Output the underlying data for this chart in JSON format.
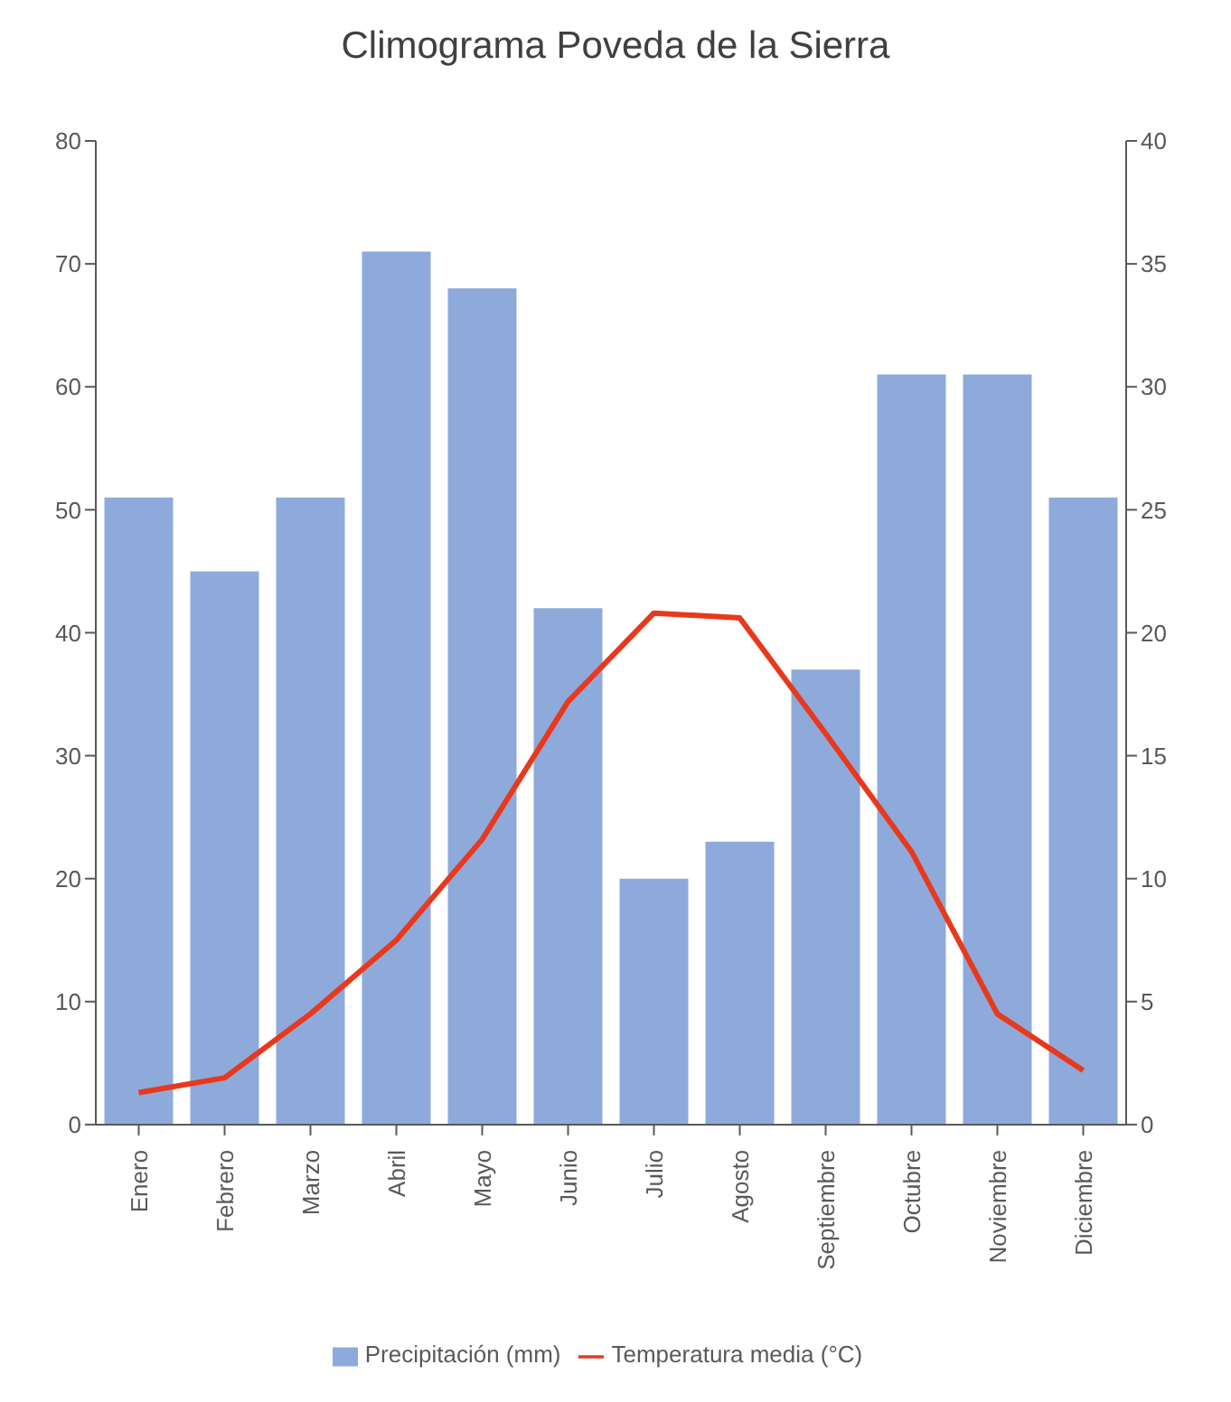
{
  "chart_data": {
    "type": "bar",
    "title": "Climograma Poveda de la Sierra",
    "categories": [
      "Enero",
      "Febrero",
      "Marzo",
      "Abril",
      "Mayo",
      "Junio",
      "Julio",
      "Agosto",
      "Septiembre",
      "Octubre",
      "Noviembre",
      "Diciembre"
    ],
    "series": [
      {
        "name": "Precipitación (mm)",
        "color": "#8eaadb",
        "values": [
          51,
          45,
          51,
          71,
          68,
          42,
          20,
          23,
          37,
          61,
          61,
          51
        ]
      },
      {
        "name": "Temperatura media (°C)",
        "type": "line",
        "axis": "y2",
        "color": "#e8391c",
        "values": [
          1.3,
          1.9,
          4.5,
          7.5,
          11.6,
          17.2,
          20.8,
          20.6,
          15.9,
          11.1,
          4.5,
          2.2
        ]
      }
    ],
    "ylim": [
      0,
      80
    ],
    "yticks": [
      0,
      10,
      20,
      30,
      40,
      50,
      60,
      70,
      80
    ],
    "y2lim": [
      0,
      40
    ],
    "y2ticks": [
      0,
      5,
      10,
      15,
      20,
      25,
      30,
      35,
      40
    ],
    "legend": "bottom",
    "marker": "none"
  }
}
